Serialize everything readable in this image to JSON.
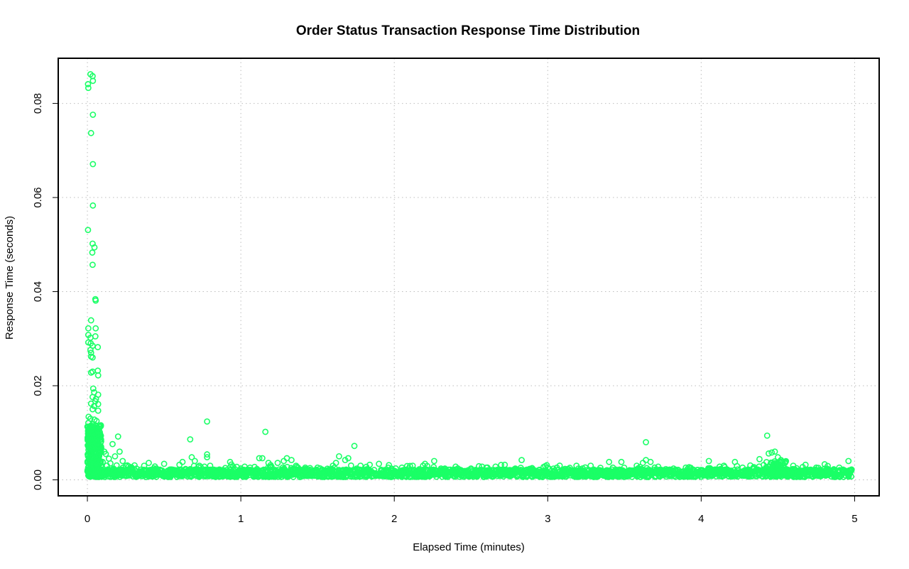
{
  "chart_data": {
    "type": "scatter",
    "title": "Order Status Transaction Response Time Distribution",
    "xlabel": "Elapsed Time (minutes)",
    "ylabel": "Response Time (seconds)",
    "xlim": [
      -0.19,
      5.16
    ],
    "ylim": [
      -0.0034,
      0.0896
    ],
    "x_ticks": [
      0,
      1,
      2,
      3,
      4,
      5
    ],
    "y_ticks": [
      0.0,
      0.02,
      0.04,
      0.06,
      0.08
    ],
    "x_tick_labels": [
      "0",
      "1",
      "2",
      "3",
      "4",
      "5"
    ],
    "y_tick_labels": [
      "0.00",
      "0.02",
      "0.04",
      "0.06",
      "0.08"
    ],
    "grid": true,
    "color": "#1aff66",
    "marker": "open-circle",
    "series": [
      {
        "points": [
          [
            0.004,
            0.0841
          ],
          [
            0.006,
            0.0833
          ],
          [
            0.02,
            0.0862
          ],
          [
            0.034,
            0.0858
          ],
          [
            0.036,
            0.0848
          ],
          [
            0.036,
            0.0776
          ],
          [
            0.024,
            0.0737
          ],
          [
            0.036,
            0.0671
          ],
          [
            0.036,
            0.0583
          ],
          [
            0.004,
            0.0531
          ],
          [
            0.034,
            0.0502
          ],
          [
            0.046,
            0.0494
          ],
          [
            0.032,
            0.0483
          ],
          [
            0.034,
            0.0457
          ],
          [
            0.052,
            0.0384
          ],
          [
            0.054,
            0.0381
          ],
          [
            0.024,
            0.0339
          ],
          [
            0.006,
            0.0322
          ],
          [
            0.054,
            0.0322
          ],
          [
            0.006,
            0.0308
          ],
          [
            0.02,
            0.0302
          ],
          [
            0.052,
            0.0305
          ],
          [
            0.006,
            0.0292
          ],
          [
            0.022,
            0.029
          ],
          [
            0.034,
            0.0285
          ],
          [
            0.068,
            0.0282
          ],
          [
            0.02,
            0.0276
          ],
          [
            0.024,
            0.027
          ],
          [
            0.024,
            0.0262
          ],
          [
            0.034,
            0.026
          ],
          [
            0.024,
            0.0228
          ],
          [
            0.034,
            0.023
          ],
          [
            0.068,
            0.0232
          ],
          [
            0.07,
            0.0222
          ],
          [
            0.038,
            0.0194
          ],
          [
            0.044,
            0.0186
          ],
          [
            0.07,
            0.0181
          ],
          [
            0.034,
            0.0176
          ],
          [
            0.056,
            0.0172
          ],
          [
            0.052,
            0.0167
          ],
          [
            0.024,
            0.0162
          ],
          [
            0.044,
            0.0157
          ],
          [
            0.07,
            0.0161
          ],
          [
            0.034,
            0.015
          ],
          [
            0.07,
            0.0147
          ],
          [
            0.008,
            0.0134
          ],
          [
            0.02,
            0.013
          ],
          [
            0.046,
            0.0128
          ],
          [
            0.06,
            0.0125
          ],
          [
            0.006,
            0.0121
          ],
          [
            0.034,
            0.0118
          ],
          [
            0.084,
            0.0114
          ],
          [
            0.01,
            0.011
          ],
          [
            0.03,
            0.0108
          ],
          [
            0.07,
            0.0104
          ],
          [
            0.004,
            0.0098
          ],
          [
            0.044,
            0.0095
          ],
          [
            0.06,
            0.009
          ],
          [
            0.006,
            0.0085
          ],
          [
            0.024,
            0.0082
          ],
          [
            0.034,
            0.0078
          ],
          [
            0.05,
            0.0074
          ],
          [
            0.07,
            0.0071
          ],
          [
            0.09,
            0.0068
          ],
          [
            0.11,
            0.006
          ],
          [
            0.014,
            0.0065
          ],
          [
            0.03,
            0.0058
          ],
          [
            0.05,
            0.0056
          ],
          [
            0.074,
            0.0052
          ],
          [
            0.004,
            0.005
          ],
          [
            0.02,
            0.0046
          ],
          [
            0.04,
            0.0044
          ],
          [
            0.06,
            0.0042
          ],
          [
            0.08,
            0.004
          ],
          [
            0.1,
            0.0038
          ],
          [
            0.012,
            0.0036
          ],
          [
            0.03,
            0.0034
          ],
          [
            0.05,
            0.0032
          ],
          [
            0.07,
            0.003
          ],
          [
            0.09,
            0.0028
          ],
          [
            0.008,
            0.0026
          ],
          [
            0.026,
            0.0024
          ],
          [
            0.046,
            0.0022
          ],
          [
            0.066,
            0.002
          ],
          [
            0.086,
            0.0018
          ],
          [
            0.004,
            0.0016
          ],
          [
            0.022,
            0.0014
          ],
          [
            0.042,
            0.0012
          ],
          [
            0.062,
            0.001
          ],
          [
            0.082,
            0.0008
          ],
          [
            0.164,
            0.0076
          ],
          [
            0.2,
            0.0092
          ],
          [
            0.21,
            0.006
          ],
          [
            0.18,
            0.005
          ],
          [
            0.14,
            0.0045
          ],
          [
            0.23,
            0.004
          ],
          [
            0.12,
            0.0055
          ],
          [
            0.15,
            0.0035
          ],
          [
            0.25,
            0.003
          ],
          [
            0.28,
            0.0026
          ],
          [
            0.32,
            0.0024
          ],
          [
            0.37,
            0.003
          ],
          [
            0.4,
            0.0036
          ],
          [
            0.45,
            0.0024
          ],
          [
            0.5,
            0.0034
          ],
          [
            0.55,
            0.0022
          ],
          [
            0.6,
            0.0032
          ],
          [
            0.62,
            0.0038
          ],
          [
            0.67,
            0.0086
          ],
          [
            0.68,
            0.0048
          ],
          [
            0.7,
            0.004
          ],
          [
            0.73,
            0.003
          ],
          [
            0.78,
            0.0124
          ],
          [
            0.78,
            0.0054
          ],
          [
            0.78,
            0.0048
          ],
          [
            0.8,
            0.003
          ],
          [
            0.86,
            0.0022
          ],
          [
            0.93,
            0.0038
          ],
          [
            0.95,
            0.0028
          ],
          [
            1.0,
            0.0024
          ],
          [
            1.06,
            0.0026
          ],
          [
            1.12,
            0.0046
          ],
          [
            1.14,
            0.0046
          ],
          [
            1.16,
            0.0102
          ],
          [
            1.18,
            0.0036
          ],
          [
            1.2,
            0.0028
          ],
          [
            1.24,
            0.0036
          ],
          [
            1.28,
            0.004
          ],
          [
            1.3,
            0.0046
          ],
          [
            1.33,
            0.0042
          ],
          [
            1.36,
            0.003
          ],
          [
            1.42,
            0.0026
          ],
          [
            1.5,
            0.0026
          ],
          [
            1.6,
            0.003
          ],
          [
            1.62,
            0.0036
          ],
          [
            1.64,
            0.005
          ],
          [
            1.68,
            0.0042
          ],
          [
            1.7,
            0.0046
          ],
          [
            1.74,
            0.0072
          ],
          [
            1.78,
            0.003
          ],
          [
            1.84,
            0.0032
          ],
          [
            1.9,
            0.0034
          ],
          [
            1.96,
            0.0026
          ],
          [
            2.05,
            0.0026
          ],
          [
            2.12,
            0.003
          ],
          [
            2.2,
            0.0034
          ],
          [
            2.26,
            0.004
          ],
          [
            2.33,
            0.0024
          ],
          [
            2.4,
            0.0028
          ],
          [
            2.5,
            0.0024
          ],
          [
            2.6,
            0.0026
          ],
          [
            2.66,
            0.0028
          ],
          [
            2.72,
            0.0032
          ],
          [
            2.83,
            0.0042
          ],
          [
            2.9,
            0.0024
          ],
          [
            3.0,
            0.0026
          ],
          [
            3.1,
            0.0022
          ],
          [
            3.2,
            0.0024
          ],
          [
            3.28,
            0.003
          ],
          [
            3.4,
            0.0038
          ],
          [
            3.48,
            0.0038
          ],
          [
            3.58,
            0.003
          ],
          [
            3.62,
            0.0036
          ],
          [
            3.64,
            0.008
          ],
          [
            3.64,
            0.0042
          ],
          [
            3.67,
            0.0038
          ],
          [
            3.72,
            0.0028
          ],
          [
            3.82,
            0.0024
          ],
          [
            3.9,
            0.0026
          ],
          [
            4.05,
            0.004
          ],
          [
            4.12,
            0.0028
          ],
          [
            4.22,
            0.0038
          ],
          [
            4.27,
            0.0026
          ],
          [
            4.38,
            0.0044
          ],
          [
            4.43,
            0.0094
          ],
          [
            4.44,
            0.0056
          ],
          [
            4.46,
            0.0058
          ],
          [
            4.48,
            0.006
          ],
          [
            4.5,
            0.0048
          ],
          [
            4.52,
            0.0042
          ],
          [
            4.55,
            0.0038
          ],
          [
            4.6,
            0.003
          ],
          [
            4.68,
            0.0032
          ],
          [
            4.75,
            0.0026
          ],
          [
            4.82,
            0.0024
          ],
          [
            4.9,
            0.0026
          ],
          [
            4.96,
            0.004
          ],
          [
            4.98,
            0.0022
          ]
        ]
      }
    ]
  }
}
